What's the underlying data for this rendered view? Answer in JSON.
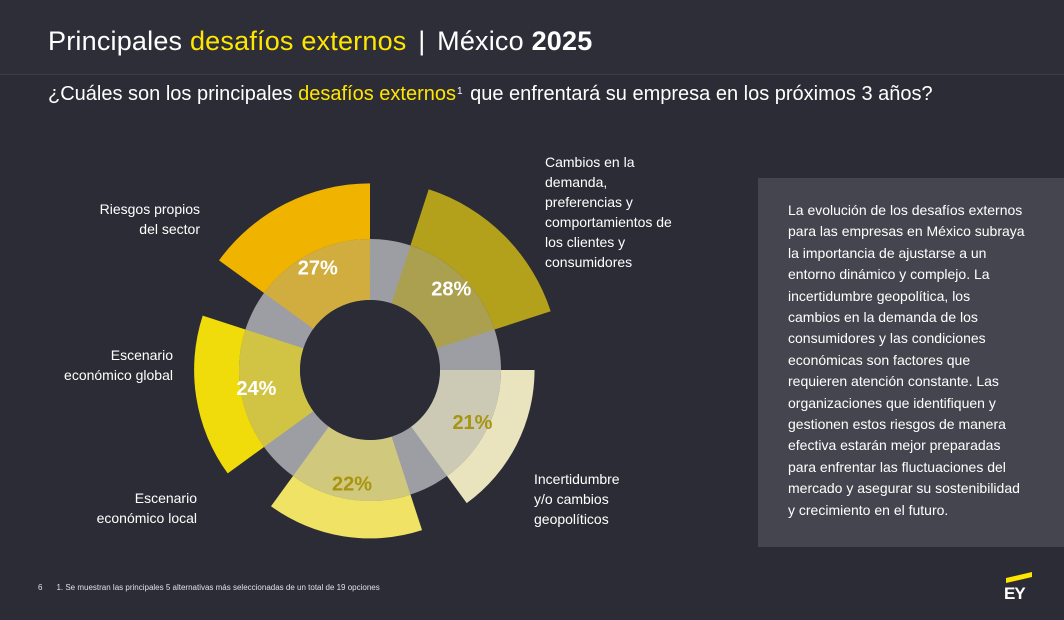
{
  "header": {
    "title_part1": "Principales",
    "title_highlight": "desafíos externos",
    "title_separator": "|",
    "title_country": "México",
    "title_year": "2025"
  },
  "question": {
    "part1": "¿Cuáles son los principales",
    "highlight": "desafíos externos",
    "footnote_mark": "1",
    "part2": "que enfrentará su empresa en los próximos 3 años?"
  },
  "chart_data": {
    "type": "pie",
    "variant": "polar-area-with-donut",
    "categories": [
      "Cambios en la demanda, preferencias y comportamientos de los clientes y consumidores",
      "Incertidumbre y/o cambios geopolíticos",
      "Escenario económico local",
      "Escenario económico global",
      "Riesgos propios del sector"
    ],
    "values": [
      28,
      21,
      22,
      24,
      27
    ],
    "value_labels": [
      "28%",
      "21%",
      "22%",
      "24%",
      "27%"
    ],
    "colors": [
      "#b3a11b",
      "#e9e3be",
      "#efe264",
      "#f0dc0a",
      "#f0b400"
    ],
    "label_colors": [
      "#ffffff",
      "#a89410",
      "#a89410",
      "#ffffff",
      "#ffffff"
    ],
    "ring_color": "#9d9da4",
    "unit": "%",
    "title": "",
    "legend": "none"
  },
  "labels": {
    "cambios": [
      "Cambios en la",
      "demanda,",
      "preferencias y",
      "comportamientos de",
      "los clientes y",
      "consumidores"
    ],
    "incertidumbre": [
      "Incertidumbre",
      "y/o cambios",
      "geopolíticos"
    ],
    "local": [
      "Escenario",
      "económico local"
    ],
    "global": [
      "Escenario",
      "económico global"
    ],
    "riesgos": [
      "Riesgos propios",
      "del sector"
    ]
  },
  "textbox": {
    "lines": [
      "La evolución de los desafíos externos",
      "para las empresas en México subraya",
      "la importancia de ajustarse a un",
      "entorno dinámico y complejo. La",
      "incertidumbre geopolítica, los",
      "cambios en la demanda de los",
      "consumidores y las condiciones",
      "económicas son factores que",
      "requieren atención constante. Las",
      "organizaciones que identifiquen y",
      "gestionen estos riesgos de manera",
      "efectiva estarán mejor preparadas",
      "para enfrentar las fluctuaciones del",
      "mercado y asegurar su sostenibilidad",
      "y crecimiento en el futuro."
    ]
  },
  "footer": {
    "page_number": "6",
    "note": "1. Se muestran las principales 5 alternativas más seleccionadas de un total de 19 opciones"
  },
  "logo": {
    "text": "EY"
  }
}
